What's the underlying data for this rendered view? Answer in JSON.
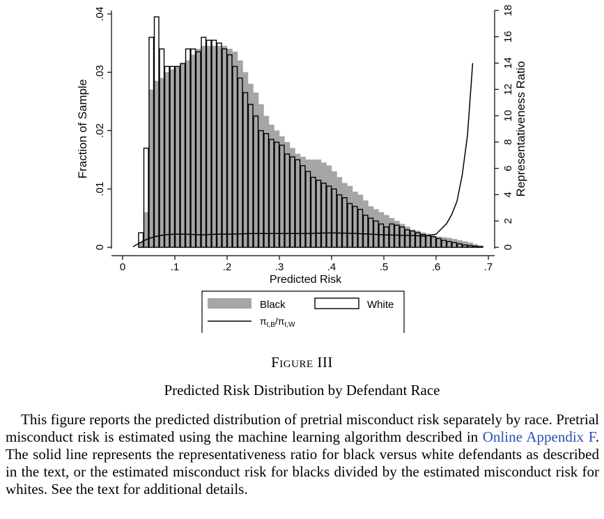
{
  "chart_data": {
    "type": "bar",
    "xlabel": "Predicted Risk",
    "ylabel": "Fraction of Sample",
    "ylabel_right": "Representativeness Ratio",
    "xlim": [
      0,
      0.7
    ],
    "ylim": [
      0,
      0.04
    ],
    "ylim_right": [
      0,
      18
    ],
    "x_ticks": [
      0,
      0.1,
      0.2,
      0.3,
      0.4,
      0.5,
      0.6,
      0.7
    ],
    "x_tick_labels": [
      "0",
      ".1",
      ".2",
      ".3",
      ".4",
      ".5",
      ".6",
      ".7"
    ],
    "y_ticks": [
      0,
      0.01,
      0.02,
      0.03,
      0.04
    ],
    "y_tick_labels": [
      "0",
      ".01",
      ".02",
      ".03",
      ".04"
    ],
    "y_right_ticks": [
      0,
      2,
      4,
      6,
      8,
      10,
      12,
      14,
      16,
      18
    ],
    "y_right_tick_labels": [
      "0",
      "2",
      "4",
      "6",
      "8",
      "10",
      "12",
      "14",
      "16",
      "18"
    ],
    "bin_width": 0.01,
    "series": [
      {
        "name": "Black",
        "style": "filled-gray",
        "x": [
          0.03,
          0.04,
          0.05,
          0.06,
          0.07,
          0.08,
          0.09,
          0.1,
          0.11,
          0.12,
          0.13,
          0.14,
          0.15,
          0.16,
          0.17,
          0.18,
          0.19,
          0.2,
          0.21,
          0.22,
          0.23,
          0.24,
          0.25,
          0.26,
          0.27,
          0.28,
          0.29,
          0.3,
          0.31,
          0.32,
          0.33,
          0.34,
          0.35,
          0.36,
          0.37,
          0.38,
          0.39,
          0.4,
          0.41,
          0.42,
          0.43,
          0.44,
          0.45,
          0.46,
          0.47,
          0.48,
          0.49,
          0.5,
          0.51,
          0.52,
          0.53,
          0.54,
          0.55,
          0.56,
          0.57,
          0.58,
          0.59,
          0.6,
          0.61,
          0.62,
          0.63,
          0.64,
          0.65,
          0.66,
          0.67,
          0.68
        ],
        "values": [
          0.0008,
          0.006,
          0.027,
          0.0285,
          0.029,
          0.03,
          0.0305,
          0.031,
          0.0315,
          0.032,
          0.033,
          0.034,
          0.0345,
          0.0345,
          0.0345,
          0.0345,
          0.0345,
          0.034,
          0.0335,
          0.032,
          0.03,
          0.028,
          0.0265,
          0.0245,
          0.0225,
          0.021,
          0.02,
          0.019,
          0.018,
          0.017,
          0.016,
          0.0155,
          0.015,
          0.015,
          0.015,
          0.0145,
          0.014,
          0.013,
          0.012,
          0.011,
          0.0105,
          0.0095,
          0.009,
          0.008,
          0.007,
          0.0065,
          0.006,
          0.0055,
          0.005,
          0.0045,
          0.004,
          0.0035,
          0.003,
          0.0028,
          0.0025,
          0.0023,
          0.002,
          0.0018,
          0.0017,
          0.0016,
          0.0014,
          0.0012,
          0.001,
          0.0008,
          0.0005,
          0.0003
        ]
      },
      {
        "name": "White",
        "style": "outline",
        "x": [
          0.03,
          0.04,
          0.05,
          0.06,
          0.07,
          0.08,
          0.09,
          0.1,
          0.11,
          0.12,
          0.13,
          0.14,
          0.15,
          0.16,
          0.17,
          0.18,
          0.19,
          0.2,
          0.21,
          0.22,
          0.23,
          0.24,
          0.25,
          0.26,
          0.27,
          0.28,
          0.29,
          0.3,
          0.31,
          0.32,
          0.33,
          0.34,
          0.35,
          0.36,
          0.37,
          0.38,
          0.39,
          0.4,
          0.41,
          0.42,
          0.43,
          0.44,
          0.45,
          0.46,
          0.47,
          0.48,
          0.49,
          0.5,
          0.51,
          0.52,
          0.53,
          0.54,
          0.55,
          0.56,
          0.57,
          0.58,
          0.59,
          0.6,
          0.61,
          0.62,
          0.63,
          0.64,
          0.65,
          0.66,
          0.67,
          0.68
        ],
        "values": [
          0.0025,
          0.017,
          0.036,
          0.0395,
          0.034,
          0.031,
          0.031,
          0.031,
          0.0315,
          0.034,
          0.034,
          0.0335,
          0.036,
          0.0355,
          0.0355,
          0.035,
          0.034,
          0.033,
          0.031,
          0.029,
          0.0265,
          0.0245,
          0.0225,
          0.02,
          0.0195,
          0.0185,
          0.018,
          0.0175,
          0.016,
          0.0155,
          0.015,
          0.014,
          0.013,
          0.012,
          0.0115,
          0.011,
          0.0105,
          0.01,
          0.009,
          0.0085,
          0.0075,
          0.007,
          0.0065,
          0.0055,
          0.005,
          0.0045,
          0.004,
          0.0035,
          0.004,
          0.0038,
          0.0035,
          0.003,
          0.0028,
          0.0025,
          0.0022,
          0.002,
          0.0018,
          0.0015,
          0.0012,
          0.001,
          0.0008,
          0.0006,
          0.0004,
          0.0003,
          0.0002,
          0.0001
        ]
      },
      {
        "name": "π_{t,B}/π_{t,W}",
        "type": "line",
        "axis": "right",
        "x": [
          0.02,
          0.04,
          0.06,
          0.08,
          0.1,
          0.12,
          0.15,
          0.18,
          0.2,
          0.25,
          0.3,
          0.35,
          0.4,
          0.45,
          0.5,
          0.55,
          0.58,
          0.6,
          0.62,
          0.63,
          0.64,
          0.65,
          0.66,
          0.67
        ],
        "values": [
          0.05,
          0.5,
          0.8,
          0.95,
          1.0,
          1.0,
          0.95,
          1.0,
          1.0,
          1.05,
          1.05,
          1.05,
          1.1,
          1.05,
          0.95,
          0.9,
          0.85,
          1.0,
          1.8,
          2.5,
          3.5,
          5.5,
          8.5,
          14.0
        ]
      }
    ],
    "legend": {
      "placement": "bottom",
      "items": [
        {
          "label": "Black",
          "swatch": "gray"
        },
        {
          "label": "White",
          "swatch": "outline"
        },
        {
          "label_main": "π",
          "label_sub1": "t,B",
          "label_mid": "/π",
          "label_sub2": "t,W",
          "swatch": "line"
        }
      ]
    }
  },
  "figure": {
    "label": "Figure III",
    "title": "Predicted Risk Distribution by Defendant Race",
    "caption_before_link": "This figure reports the predicted distribution of pretrial misconduct risk separately by race. Pretrial misconduct risk is estimated using the machine learning algorithm described in ",
    "caption_link": "Online Appendix F",
    "caption_after_link": ". The solid line represents the representativeness ratio for black versus white defendants as described in the text, or the estimated misconduct risk for blacks divided by the estimated misconduct risk for whites. See the text for additional details."
  },
  "colors": {
    "black_bar": "#a6a6a6",
    "white_bar_stroke": "#000000",
    "line": "#000000",
    "link": "#2a4fb3"
  }
}
